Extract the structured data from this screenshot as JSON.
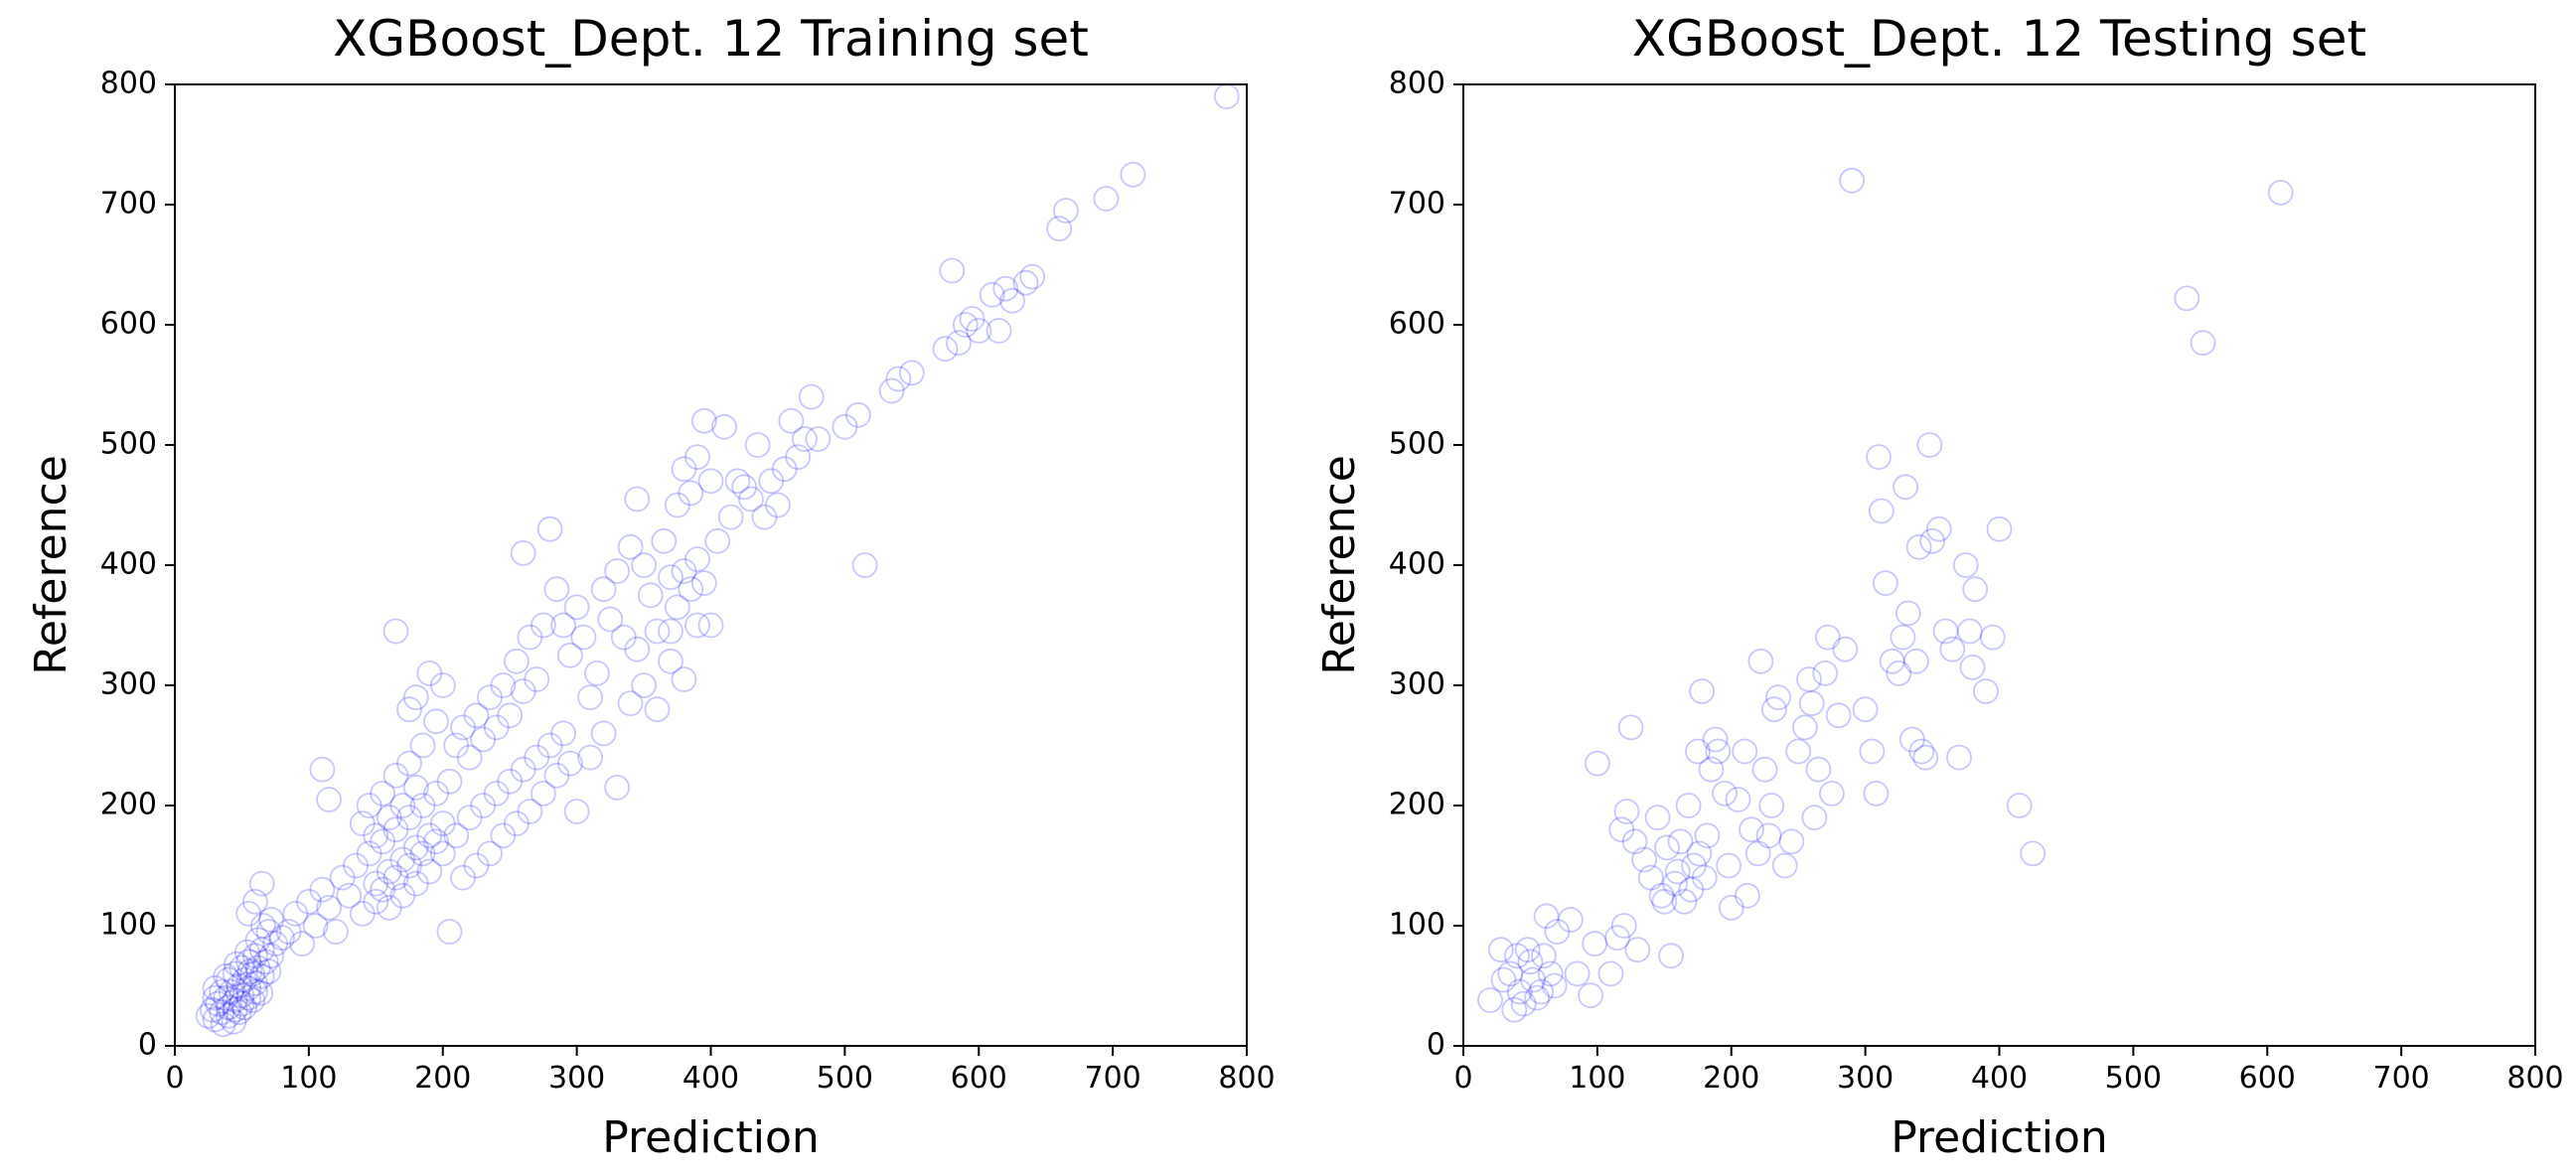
{
  "colors": {
    "marker": "#0000ff",
    "axis": "#000000",
    "background": "#ffffff"
  },
  "chart_data": [
    {
      "type": "scatter",
      "title": "XGBoost_Dept. 12 Training set",
      "xlabel": "Prediction",
      "ylabel": "Reference",
      "xlim": [
        0,
        800
      ],
      "ylim": [
        0,
        800
      ],
      "xticks": [
        0,
        100,
        200,
        300,
        400,
        500,
        600,
        700,
        800
      ],
      "yticks": [
        0,
        100,
        200,
        300,
        400,
        500,
        600,
        700,
        800
      ],
      "xtick_labels": [
        "0",
        "100",
        "200",
        "300",
        "400",
        "500",
        "600",
        "700",
        "800"
      ],
      "ytick_labels": [
        "0",
        "100",
        "200",
        "300",
        "400",
        "500",
        "600",
        "700",
        "800"
      ],
      "marker": "open-circle",
      "grid": false,
      "points": [
        [
          25,
          25
        ],
        [
          28,
          30
        ],
        [
          30,
          22
        ],
        [
          32,
          35
        ],
        [
          35,
          28
        ],
        [
          38,
          40
        ],
        [
          40,
          32
        ],
        [
          42,
          45
        ],
        [
          45,
          38
        ],
        [
          48,
          50
        ],
        [
          50,
          42
        ],
        [
          52,
          55
        ],
        [
          55,
          48
        ],
        [
          58,
          60
        ],
        [
          60,
          52
        ],
        [
          62,
          65
        ],
        [
          65,
          58
        ],
        [
          68,
          70
        ],
        [
          70,
          62
        ],
        [
          72,
          75
        ],
        [
          35,
          45
        ],
        [
          40,
          55
        ],
        [
          45,
          60
        ],
        [
          50,
          65
        ],
        [
          55,
          70
        ],
        [
          60,
          75
        ],
        [
          65,
          80
        ],
        [
          40,
          25
        ],
        [
          45,
          30
        ],
        [
          50,
          35
        ],
        [
          55,
          40
        ],
        [
          60,
          45
        ],
        [
          30,
          48
        ],
        [
          38,
          58
        ],
        [
          46,
          68
        ],
        [
          54,
          78
        ],
        [
          62,
          88
        ],
        [
          70,
          95
        ],
        [
          75,
          85
        ],
        [
          80,
          90
        ],
        [
          48,
          28
        ],
        [
          52,
          32
        ],
        [
          58,
          38
        ],
        [
          64,
          44
        ],
        [
          44,
          20
        ],
        [
          36,
          18
        ],
        [
          30,
          40
        ],
        [
          56,
          62
        ],
        [
          66,
          100
        ],
        [
          60,
          120
        ],
        [
          65,
          135
        ],
        [
          55,
          110
        ],
        [
          72,
          105
        ],
        [
          85,
          95
        ],
        [
          90,
          110
        ],
        [
          95,
          85
        ],
        [
          100,
          120
        ],
        [
          105,
          100
        ],
        [
          110,
          130
        ],
        [
          115,
          115
        ],
        [
          110,
          230
        ],
        [
          115,
          205
        ],
        [
          120,
          95
        ],
        [
          125,
          140
        ],
        [
          130,
          125
        ],
        [
          135,
          150
        ],
        [
          140,
          110
        ],
        [
          145,
          160
        ],
        [
          150,
          135
        ],
        [
          155,
          170
        ],
        [
          160,
          145
        ],
        [
          165,
          180
        ],
        [
          170,
          155
        ],
        [
          175,
          190
        ],
        [
          180,
          165
        ],
        [
          185,
          200
        ],
        [
          190,
          175
        ],
        [
          195,
          210
        ],
        [
          200,
          185
        ],
        [
          205,
          220
        ],
        [
          140,
          185
        ],
        [
          145,
          200
        ],
        [
          150,
          175
        ],
        [
          155,
          210
        ],
        [
          160,
          190
        ],
        [
          165,
          225
        ],
        [
          170,
          200
        ],
        [
          175,
          235
        ],
        [
          180,
          215
        ],
        [
          185,
          250
        ],
        [
          150,
          120
        ],
        [
          155,
          130
        ],
        [
          160,
          115
        ],
        [
          165,
          140
        ],
        [
          170,
          125
        ],
        [
          175,
          150
        ],
        [
          180,
          135
        ],
        [
          185,
          160
        ],
        [
          190,
          145
        ],
        [
          195,
          170
        ],
        [
          165,
          345
        ],
        [
          175,
          280
        ],
        [
          180,
          290
        ],
        [
          190,
          310
        ],
        [
          195,
          270
        ],
        [
          200,
          300
        ],
        [
          210,
          250
        ],
        [
          215,
          265
        ],
        [
          220,
          240
        ],
        [
          225,
          275
        ],
        [
          230,
          255
        ],
        [
          235,
          290
        ],
        [
          240,
          265
        ],
        [
          245,
          300
        ],
        [
          250,
          275
        ],
        [
          255,
          320
        ],
        [
          260,
          295
        ],
        [
          265,
          340
        ],
        [
          270,
          305
        ],
        [
          275,
          350
        ],
        [
          200,
          160
        ],
        [
          210,
          175
        ],
        [
          220,
          190
        ],
        [
          230,
          200
        ],
        [
          240,
          210
        ],
        [
          250,
          220
        ],
        [
          260,
          230
        ],
        [
          270,
          240
        ],
        [
          280,
          250
        ],
        [
          290,
          260
        ],
        [
          205,
          95
        ],
        [
          215,
          140
        ],
        [
          225,
          150
        ],
        [
          235,
          160
        ],
        [
          245,
          175
        ],
        [
          255,
          185
        ],
        [
          265,
          195
        ],
        [
          275,
          210
        ],
        [
          285,
          225
        ],
        [
          295,
          235
        ],
        [
          260,
          410
        ],
        [
          280,
          430
        ],
        [
          285,
          380
        ],
        [
          290,
          350
        ],
        [
          295,
          325
        ],
        [
          300,
          365
        ],
        [
          305,
          340
        ],
        [
          310,
          290
        ],
        [
          315,
          310
        ],
        [
          320,
          380
        ],
        [
          325,
          355
        ],
        [
          330,
          395
        ],
        [
          335,
          340
        ],
        [
          340,
          415
        ],
        [
          345,
          330
        ],
        [
          350,
          400
        ],
        [
          355,
          375
        ],
        [
          360,
          345
        ],
        [
          365,
          420
        ],
        [
          370,
          390
        ],
        [
          300,
          195
        ],
        [
          310,
          240
        ],
        [
          320,
          260
        ],
        [
          330,
          215
        ],
        [
          340,
          285
        ],
        [
          350,
          300
        ],
        [
          360,
          280
        ],
        [
          370,
          320
        ],
        [
          380,
          305
        ],
        [
          390,
          350
        ],
        [
          345,
          455
        ],
        [
          375,
          450
        ],
        [
          380,
          480
        ],
        [
          385,
          460
        ],
        [
          390,
          490
        ],
        [
          395,
          520
        ],
        [
          400,
          470
        ],
        [
          405,
          420
        ],
        [
          410,
          515
        ],
        [
          415,
          440
        ],
        [
          420,
          470
        ],
        [
          425,
          465
        ],
        [
          430,
          455
        ],
        [
          435,
          500
        ],
        [
          440,
          440
        ],
        [
          445,
          470
        ],
        [
          450,
          450
        ],
        [
          455,
          480
        ],
        [
          460,
          520
        ],
        [
          465,
          490
        ],
        [
          470,
          505
        ],
        [
          475,
          540
        ],
        [
          480,
          505
        ],
        [
          400,
          350
        ],
        [
          395,
          385
        ],
        [
          390,
          405
        ],
        [
          385,
          380
        ],
        [
          380,
          395
        ],
        [
          375,
          365
        ],
        [
          370,
          345
        ],
        [
          500,
          515
        ],
        [
          510,
          525
        ],
        [
          515,
          400
        ],
        [
          535,
          545
        ],
        [
          540,
          555
        ],
        [
          550,
          560
        ],
        [
          575,
          580
        ],
        [
          580,
          645
        ],
        [
          585,
          585
        ],
        [
          590,
          600
        ],
        [
          595,
          605
        ],
        [
          600,
          595
        ],
        [
          610,
          625
        ],
        [
          615,
          595
        ],
        [
          620,
          630
        ],
        [
          625,
          620
        ],
        [
          635,
          635
        ],
        [
          640,
          640
        ],
        [
          660,
          680
        ],
        [
          665,
          695
        ],
        [
          695,
          705
        ],
        [
          715,
          725
        ],
        [
          785,
          790
        ]
      ]
    },
    {
      "type": "scatter",
      "title": "XGBoost_Dept. 12 Testing set",
      "xlabel": "Prediction",
      "ylabel": "Reference",
      "xlim": [
        0,
        800
      ],
      "ylim": [
        0,
        800
      ],
      "xticks": [
        0,
        100,
        200,
        300,
        400,
        500,
        600,
        700,
        800
      ],
      "yticks": [
        0,
        100,
        200,
        300,
        400,
        500,
        600,
        700,
        800
      ],
      "xtick_labels": [
        "0",
        "100",
        "200",
        "300",
        "400",
        "500",
        "600",
        "700",
        "800"
      ],
      "ytick_labels": [
        "0",
        "100",
        "200",
        "300",
        "400",
        "500",
        "600",
        "700",
        "800"
      ],
      "marker": "open-circle",
      "grid": false,
      "points": [
        [
          20,
          38
        ],
        [
          28,
          80
        ],
        [
          30,
          55
        ],
        [
          35,
          60
        ],
        [
          38,
          30
        ],
        [
          40,
          75
        ],
        [
          42,
          45
        ],
        [
          45,
          35
        ],
        [
          48,
          80
        ],
        [
          50,
          70
        ],
        [
          52,
          55
        ],
        [
          55,
          40
        ],
        [
          58,
          45
        ],
        [
          60,
          75
        ],
        [
          62,
          108
        ],
        [
          65,
          60
        ],
        [
          68,
          50
        ],
        [
          70,
          95
        ],
        [
          80,
          105
        ],
        [
          85,
          60
        ],
        [
          95,
          42
        ],
        [
          98,
          85
        ],
        [
          100,
          235
        ],
        [
          110,
          60
        ],
        [
          115,
          90
        ],
        [
          118,
          180
        ],
        [
          120,
          100
        ],
        [
          122,
          195
        ],
        [
          125,
          265
        ],
        [
          128,
          170
        ],
        [
          130,
          80
        ],
        [
          135,
          155
        ],
        [
          140,
          140
        ],
        [
          145,
          190
        ],
        [
          148,
          125
        ],
        [
          150,
          120
        ],
        [
          152,
          165
        ],
        [
          155,
          75
        ],
        [
          158,
          135
        ],
        [
          160,
          145
        ],
        [
          162,
          170
        ],
        [
          165,
          120
        ],
        [
          168,
          200
        ],
        [
          170,
          130
        ],
        [
          172,
          150
        ],
        [
          175,
          245
        ],
        [
          176,
          160
        ],
        [
          178,
          295
        ],
        [
          180,
          140
        ],
        [
          182,
          175
        ],
        [
          185,
          230
        ],
        [
          188,
          255
        ],
        [
          190,
          245
        ],
        [
          195,
          210
        ],
        [
          198,
          150
        ],
        [
          200,
          115
        ],
        [
          205,
          205
        ],
        [
          210,
          245
        ],
        [
          212,
          125
        ],
        [
          215,
          180
        ],
        [
          220,
          160
        ],
        [
          222,
          320
        ],
        [
          225,
          230
        ],
        [
          228,
          175
        ],
        [
          230,
          200
        ],
        [
          232,
          280
        ],
        [
          235,
          290
        ],
        [
          240,
          150
        ],
        [
          245,
          170
        ],
        [
          250,
          245
        ],
        [
          255,
          265
        ],
        [
          258,
          305
        ],
        [
          260,
          285
        ],
        [
          262,
          190
        ],
        [
          265,
          230
        ],
        [
          270,
          310
        ],
        [
          272,
          340
        ],
        [
          275,
          210
        ],
        [
          280,
          275
        ],
        [
          285,
          330
        ],
        [
          290,
          720
        ],
        [
          300,
          280
        ],
        [
          305,
          245
        ],
        [
          308,
          210
        ],
        [
          310,
          490
        ],
        [
          312,
          445
        ],
        [
          315,
          385
        ],
        [
          320,
          320
        ],
        [
          325,
          310
        ],
        [
          328,
          340
        ],
        [
          330,
          465
        ],
        [
          332,
          360
        ],
        [
          335,
          255
        ],
        [
          338,
          320
        ],
        [
          340,
          415
        ],
        [
          342,
          245
        ],
        [
          345,
          240
        ],
        [
          348,
          500
        ],
        [
          350,
          420
        ],
        [
          355,
          430
        ],
        [
          360,
          345
        ],
        [
          365,
          330
        ],
        [
          370,
          240
        ],
        [
          375,
          400
        ],
        [
          378,
          345
        ],
        [
          380,
          315
        ],
        [
          382,
          380
        ],
        [
          390,
          295
        ],
        [
          395,
          340
        ],
        [
          400,
          430
        ],
        [
          415,
          200
        ],
        [
          425,
          160
        ],
        [
          540,
          622
        ],
        [
          552,
          585
        ],
        [
          610,
          710
        ]
      ]
    }
  ]
}
